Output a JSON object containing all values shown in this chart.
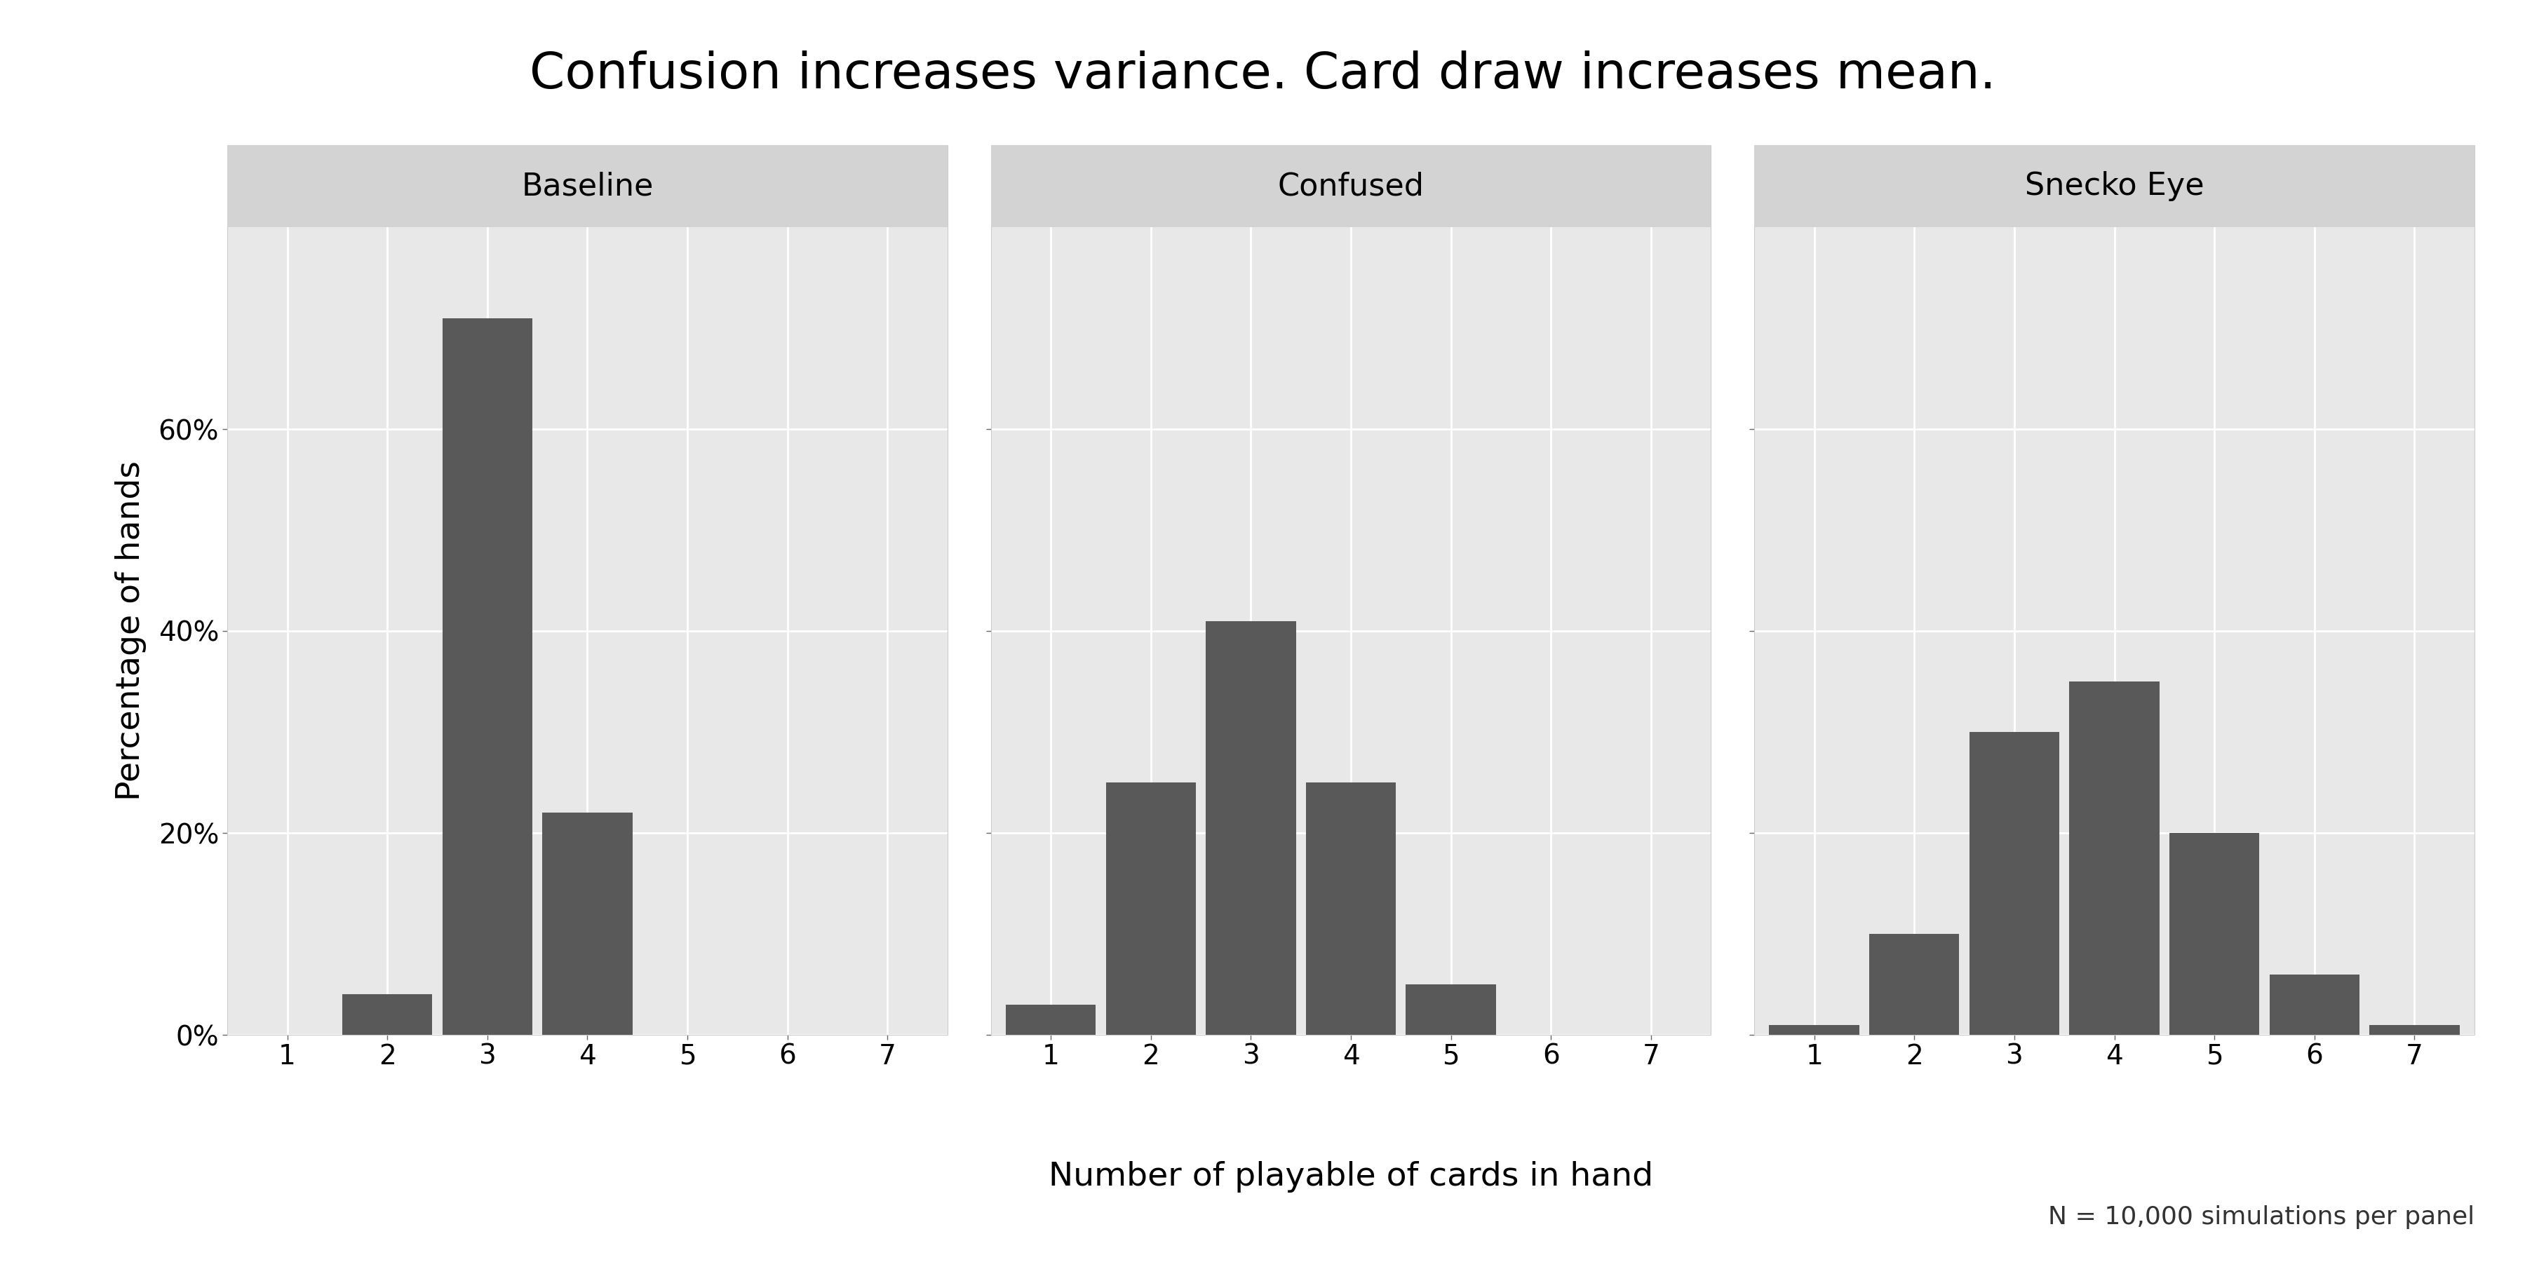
{
  "title": "Confusion increases variance. Card draw increases mean.",
  "xlabel": "Number of playable of cards in hand",
  "ylabel": "Percentage of hands",
  "panels": [
    {
      "label": "Baseline",
      "x": [
        1,
        2,
        3,
        4,
        5,
        6,
        7
      ],
      "y": [
        0.0,
        0.04,
        0.71,
        0.22,
        0.0,
        0.0,
        0.0
      ]
    },
    {
      "label": "Confused",
      "x": [
        1,
        2,
        3,
        4,
        5,
        6,
        7
      ],
      "y": [
        0.03,
        0.25,
        0.41,
        0.25,
        0.05,
        0.0,
        0.0
      ]
    },
    {
      "label": "Snecko Eye",
      "x": [
        1,
        2,
        3,
        4,
        5,
        6,
        7
      ],
      "y": [
        0.01,
        0.1,
        0.3,
        0.35,
        0.2,
        0.06,
        0.01
      ]
    }
  ],
  "bar_color": "#595959",
  "panel_bg": "#EBEBEB",
  "outer_bg": "#FFFFFF",
  "panel_header_bg": "#D3D3D3",
  "panel_plot_bg": "#E8E8E8",
  "grid_color": "#FFFFFF",
  "title_fontsize": 52,
  "label_fontsize": 34,
  "tick_fontsize": 28,
  "panel_title_fontsize": 32,
  "annotation": "N = 10,000 simulations per panel",
  "annotation_fontsize": 26,
  "ylim": [
    0.0,
    0.8
  ],
  "yticks": [
    0.0,
    0.2,
    0.4,
    0.6
  ],
  "ytick_labels": [
    "0%",
    "20%",
    "40%",
    "60%"
  ]
}
